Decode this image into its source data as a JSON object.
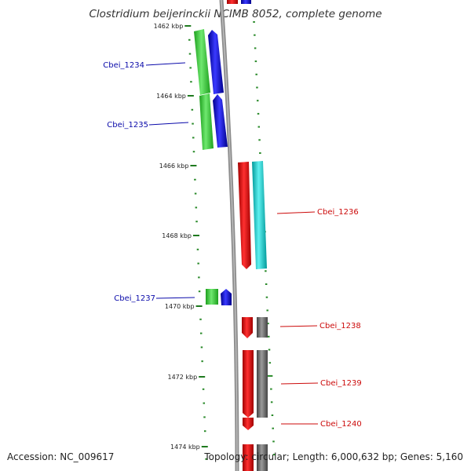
{
  "title": "Clostridium beijerinckii NCIMB 8052, complete genome",
  "footer": {
    "accession": "Accession: NC_009617",
    "summary": "Topology: circular; Length: 6,000,632 bp; Genes: 5,160"
  },
  "scale": {
    "labels": [
      "1462 kbp",
      "1464 kbp",
      "1466 kbp",
      "1468 kbp",
      "1470 kbp",
      "1472 kbp",
      "1474 kbp"
    ],
    "minor_color": "#2a8a2a",
    "major_color": "#1f7a1f"
  },
  "colors": {
    "backbone": "#8c8c8c",
    "forward_cds": "#2fc82f",
    "forward_gene": "#0a0ae6",
    "reverse_cds": "#e60a0a",
    "reverse_feature_1236": "#22cccc",
    "reverse_feature_other": "#707070",
    "forward_label": "#0a0aaa",
    "reverse_label": "#cc0a0a"
  },
  "genes": [
    {
      "label": "Cbei_1234",
      "strand": "forward"
    },
    {
      "label": "Cbei_1235",
      "strand": "forward"
    },
    {
      "label": "Cbei_1236",
      "strand": "reverse"
    },
    {
      "label": "Cbei_1237",
      "strand": "forward"
    },
    {
      "label": "Cbei_1238",
      "strand": "reverse"
    },
    {
      "label": "Cbei_1239",
      "strand": "reverse"
    },
    {
      "label": "Cbei_1240",
      "strand": "reverse"
    }
  ]
}
